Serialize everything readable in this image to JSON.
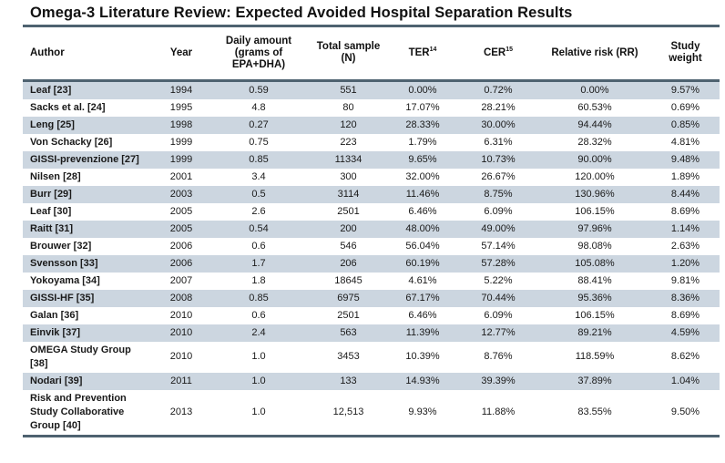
{
  "title": "Omega-3 Literature Review: Expected Avoided Hospital Separation Results",
  "colors": {
    "stripe": "#ccd6e0",
    "rule": "#4e6270",
    "text": "#1a1a1a",
    "background": "#ffffff"
  },
  "table": {
    "column_keys": [
      "author",
      "year",
      "daily-amount",
      "total-sample",
      "ter",
      "cer",
      "relative-risk",
      "study-weight"
    ],
    "columns": [
      {
        "label": "Author"
      },
      {
        "label": "Year"
      },
      {
        "label": "Daily amount (grams of EPA+DHA)"
      },
      {
        "label": "Total sample (N)"
      },
      {
        "label": "TER",
        "sup": "14"
      },
      {
        "label": "CER",
        "sup": "15"
      },
      {
        "label": "Relative risk (RR)"
      },
      {
        "label": "Study weight"
      }
    ],
    "rows": [
      [
        "Leaf [23]",
        "1994",
        "0.59",
        "551",
        "0.00%",
        "0.72%",
        "0.00%",
        "9.57%"
      ],
      [
        "Sacks et al. [24]",
        "1995",
        "4.8",
        "80",
        "17.07%",
        "28.21%",
        "60.53%",
        "0.69%"
      ],
      [
        "Leng [25]",
        "1998",
        "0.27",
        "120",
        "28.33%",
        "30.00%",
        "94.44%",
        "0.85%"
      ],
      [
        "Von Schacky [26]",
        "1999",
        "0.75",
        "223",
        "1.79%",
        "6.31%",
        "28.32%",
        "4.81%"
      ],
      [
        "GISSI-prevenzione [27]",
        "1999",
        "0.85",
        "11334",
        "9.65%",
        "10.73%",
        "90.00%",
        "9.48%"
      ],
      [
        "Nilsen [28]",
        "2001",
        "3.4",
        "300",
        "32.00%",
        "26.67%",
        "120.00%",
        "1.89%"
      ],
      [
        "Burr [29]",
        "2003",
        "0.5",
        "3114",
        "11.46%",
        "8.75%",
        "130.96%",
        "8.44%"
      ],
      [
        "Leaf [30]",
        "2005",
        "2.6",
        "2501",
        "6.46%",
        "6.09%",
        "106.15%",
        "8.69%"
      ],
      [
        "Raitt [31]",
        "2005",
        "0.54",
        "200",
        "48.00%",
        "49.00%",
        "97.96%",
        "1.14%"
      ],
      [
        "Brouwer [32]",
        "2006",
        "0.6",
        "546",
        "56.04%",
        "57.14%",
        "98.08%",
        "2.63%"
      ],
      [
        "Svensson [33]",
        "2006",
        "1.7",
        "206",
        "60.19%",
        "57.28%",
        "105.08%",
        "1.20%"
      ],
      [
        "Yokoyama [34]",
        "2007",
        "1.8",
        "18645",
        "4.61%",
        "5.22%",
        "88.41%",
        "9.81%"
      ],
      [
        "GISSI-HF [35]",
        "2008",
        "0.85",
        "6975",
        "67.17%",
        "70.44%",
        "95.36%",
        "8.36%"
      ],
      [
        "Galan [36]",
        "2010",
        "0.6",
        "2501",
        "6.46%",
        "6.09%",
        "106.15%",
        "8.69%"
      ],
      [
        "Einvik [37]",
        "2010",
        "2.4",
        "563",
        "11.39%",
        "12.77%",
        "89.21%",
        "4.59%"
      ],
      [
        "OMEGA Study Group [38]",
        "2010",
        "1.0",
        "3453",
        "10.39%",
        "8.76%",
        "118.59%",
        "8.62%"
      ],
      [
        "Nodari [39]",
        "2011",
        "1.0",
        "133",
        "14.93%",
        "39.39%",
        "37.89%",
        "1.04%"
      ],
      [
        "Risk and Prevention Study Collaborative Group [40]",
        "2013",
        "1.0",
        "12,513",
        "9.93%",
        "11.88%",
        "83.55%",
        "9.50%"
      ]
    ]
  }
}
